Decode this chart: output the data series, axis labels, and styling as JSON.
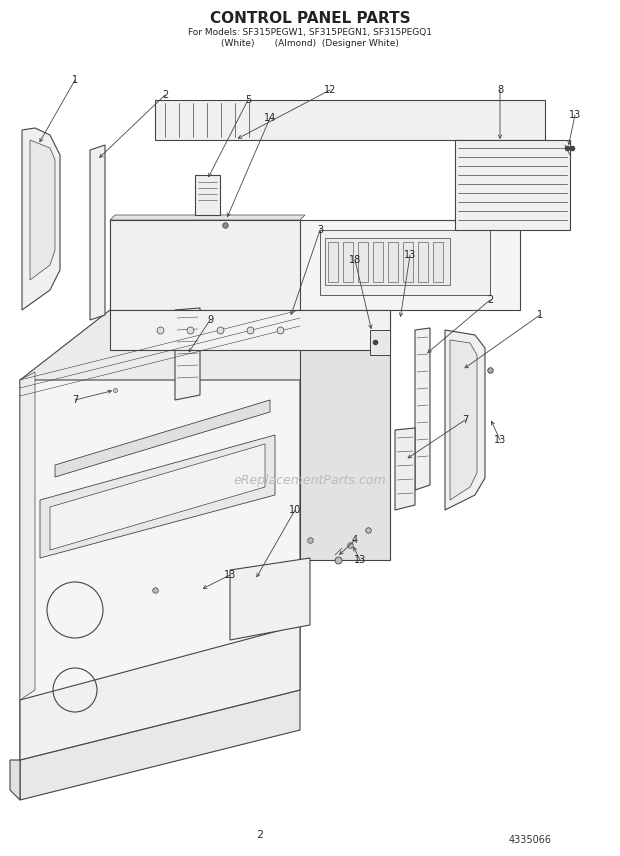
{
  "title_line1": "CONTROL PANEL PARTS",
  "title_line2": "For Models: SF315PEGW1, SF315PEGN1, SF315PEGQ1",
  "title_line3": "(White)       (Almond)  (Designer White)",
  "page_number": "2",
  "part_number": "4335066",
  "watermark": "eReplacementParts.com",
  "bg": "#ffffff",
  "lc": "#444444",
  "fc_light": "#f8f8f8",
  "fc_mid": "#eeeeee",
  "fc_dark": "#d8d8d8"
}
